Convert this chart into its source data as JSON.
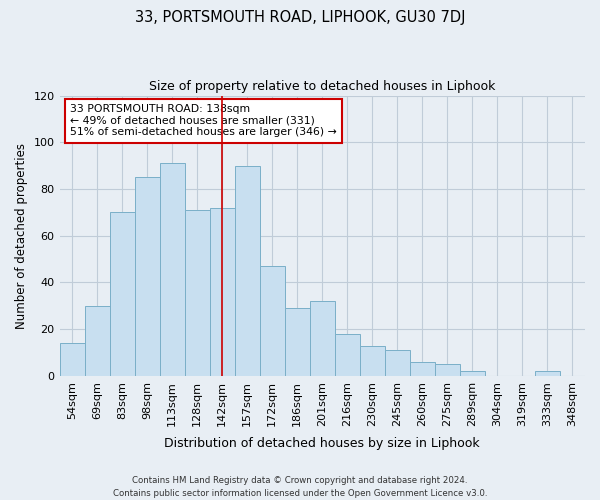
{
  "title": "33, PORTSMOUTH ROAD, LIPHOOK, GU30 7DJ",
  "subtitle": "Size of property relative to detached houses in Liphook",
  "xlabel": "Distribution of detached houses by size in Liphook",
  "ylabel": "Number of detached properties",
  "categories": [
    "54sqm",
    "69sqm",
    "83sqm",
    "98sqm",
    "113sqm",
    "128sqm",
    "142sqm",
    "157sqm",
    "172sqm",
    "186sqm",
    "201sqm",
    "216sqm",
    "230sqm",
    "245sqm",
    "260sqm",
    "275sqm",
    "289sqm",
    "304sqm",
    "319sqm",
    "333sqm",
    "348sqm"
  ],
  "values": [
    14,
    30,
    70,
    85,
    91,
    71,
    72,
    90,
    47,
    29,
    32,
    18,
    13,
    11,
    6,
    5,
    2,
    0,
    0,
    2,
    0
  ],
  "bar_color": "#c8dff0",
  "bar_edge_color": "#7aafc8",
  "vline_color": "#cc0000",
  "vline_index": 6,
  "ylim": [
    0,
    120
  ],
  "yticks": [
    0,
    20,
    40,
    60,
    80,
    100,
    120
  ],
  "annotation_text": "33 PORTSMOUTH ROAD: 138sqm\n← 49% of detached houses are smaller (331)\n51% of semi-detached houses are larger (346) →",
  "annotation_box_color": "#ffffff",
  "annotation_box_edgecolor": "#cc0000",
  "footer_line1": "Contains HM Land Registry data © Crown copyright and database right 2024.",
  "footer_line2": "Contains public sector information licensed under the Open Government Licence v3.0.",
  "background_color": "#e8eef4",
  "plot_background_color": "#e8eef4",
  "grid_color": "#c0ccd8"
}
